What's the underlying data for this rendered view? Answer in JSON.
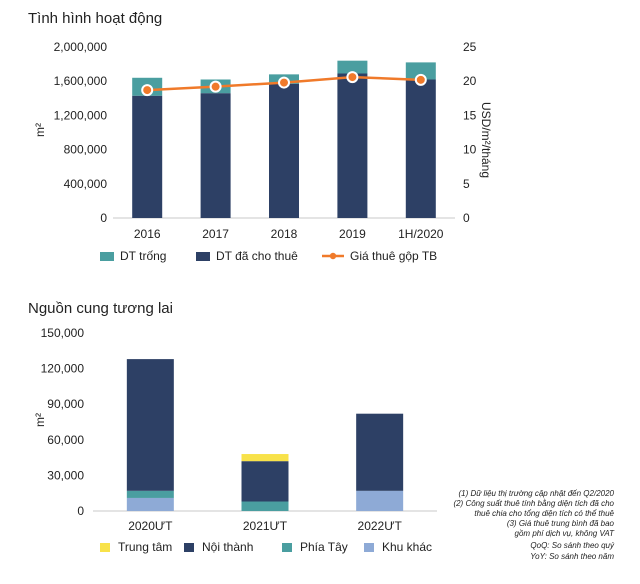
{
  "chart_data": [
    {
      "type": "bar",
      "title": "Tình hình hoạt động",
      "categories": [
        "2016",
        "2017",
        "2018",
        "2019",
        "1H/2020"
      ],
      "stacked": true,
      "series": [
        {
          "name": "DT đã cho thuê",
          "values": [
            1430000,
            1460000,
            1570000,
            1690000,
            1620000
          ],
          "color": "#2d4065"
        },
        {
          "name": "DT trống",
          "values": [
            210000,
            160000,
            110000,
            150000,
            200000
          ],
          "color": "#4a9ea0"
        }
      ],
      "line_series": {
        "name": "Giá thuê gộp TB",
        "values": [
          18.7,
          19.2,
          19.8,
          20.6,
          20.2
        ],
        "color": "#f07a2a"
      },
      "ylabel": "m²",
      "ylim": [
        0,
        2000000
      ],
      "yticks": [
        0,
        400000,
        800000,
        1200000,
        1600000,
        2000000
      ],
      "ytick_labels": [
        "0",
        "400,000",
        "800,000",
        "1,200,000",
        "1,600,000",
        "2,000,000"
      ],
      "y2label": "USD/m²/tháng",
      "y2lim": [
        0,
        25
      ],
      "y2ticks": [
        0,
        5,
        10,
        15,
        20,
        25
      ],
      "y2tick_labels": [
        "0",
        "5",
        "10",
        "15",
        "20",
        "25"
      ],
      "legend_order": [
        "DT trống",
        "DT đã cho thuê",
        "Giá thuê gộp TB"
      ],
      "legend_position": "bottom"
    },
    {
      "type": "bar",
      "title": "Nguồn cung tương lai",
      "categories": [
        "2020ƯT",
        "2021ƯT",
        "2022ƯT"
      ],
      "stacked": true,
      "series": [
        {
          "name": "Khu khác",
          "values": [
            11000,
            0,
            17000
          ],
          "color": "#8eaad6"
        },
        {
          "name": "Phía Tây",
          "values": [
            6000,
            8000,
            0
          ],
          "color": "#4a9ea0"
        },
        {
          "name": "Nội thành",
          "values": [
            111000,
            34000,
            65000
          ],
          "color": "#2d4065"
        },
        {
          "name": "Trung tâm",
          "values": [
            0,
            6000,
            0
          ],
          "color": "#f8e24a"
        }
      ],
      "ylabel": "m²",
      "ylim": [
        0,
        150000
      ],
      "yticks": [
        0,
        30000,
        60000,
        90000,
        120000,
        150000
      ],
      "ytick_labels": [
        "0",
        "30,000",
        "60,000",
        "90,000",
        "120,000",
        "150,000"
      ],
      "legend_order": [
        "Trung tâm",
        "Nội thành",
        "Phía Tây",
        "Khu khác"
      ],
      "legend_position": "bottom"
    }
  ],
  "notes": [
    "(1) Dữ liệu thị trường cập nhật đến Q2/2020",
    "(2) Công suất thuê tính bằng diện tích đã cho",
    "thuê chia cho tổng diện tích có thể thuê",
    "(3) Giá thuê trung bình đã bao",
    "gồm phí dịch vụ, không VAT",
    "QoQ: So sánh theo quý",
    "YoY: So sánh theo năm"
  ]
}
